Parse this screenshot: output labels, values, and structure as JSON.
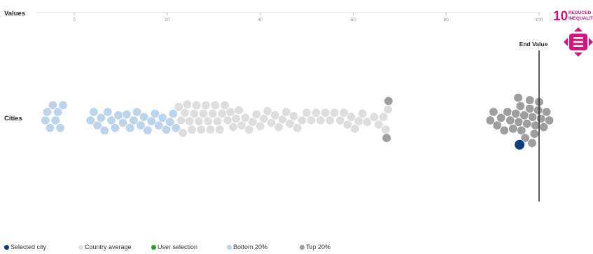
{
  "chart_data": {
    "type": "scatter",
    "subtype": "beeswarm",
    "x_axis_label": "Values",
    "y_category_label": "Cities",
    "xlim": [
      -8,
      103
    ],
    "x_ticks": [
      0,
      20,
      40,
      60,
      80,
      100
    ],
    "end_value": {
      "label": "End Value",
      "value": 100
    },
    "colors": {
      "selected_city": "#0b3d7a",
      "country_average": "#dedede",
      "user_selection": "#2ca02c",
      "bottom_20": "#bcd4ec",
      "top_20": "#9e9e9e"
    },
    "groups": [
      {
        "category": "bottom_20",
        "values": [
          -6.2,
          -5.8,
          -5.2,
          -4.6,
          -4.0,
          -3.5,
          -3.0,
          -2.4,
          3.5,
          4.2,
          5.0,
          5.8,
          6.5,
          7.2,
          8.0,
          8.8,
          9.5,
          10.5,
          11.3,
          12.0,
          12.8,
          13.5,
          14.3,
          15.0,
          15.8,
          16.6,
          17.4,
          18.2,
          19.0,
          19.8,
          20.6,
          21.3,
          21.9
        ]
      },
      {
        "category": "country_average",
        "values": [
          22.5,
          23.0,
          23.4,
          23.8,
          24.3,
          24.8,
          25.3,
          25.8,
          26.3,
          26.8,
          27.3,
          27.8,
          28.3,
          28.8,
          29.3,
          29.8,
          30.3,
          30.8,
          31.3,
          31.8,
          32.4,
          33.0,
          33.6,
          34.2,
          34.8,
          35.4,
          36.0,
          36.8,
          37.6,
          38.4,
          39.2,
          40.0,
          40.8,
          41.6,
          42.4,
          43.2,
          44.0,
          44.8,
          45.6,
          46.4,
          47.2,
          48.0,
          49.0,
          50.0,
          51.0,
          52.0,
          53.0,
          54.0,
          55.0,
          56.0,
          57.2,
          58.0,
          58.8,
          59.6,
          60.4,
          61.2,
          62.0,
          63.0,
          64.5,
          65.5,
          66.5,
          67.0,
          67.5
        ]
      },
      {
        "category": "top_20",
        "values": [
          67.2,
          67.6,
          89.5,
          90.2,
          91.0,
          91.8,
          92.5,
          93.2,
          93.8,
          94.4,
          95.0,
          95.6,
          96.2,
          96.8,
          97.4,
          98.0,
          98.6,
          99.2,
          99.8,
          100.4,
          101.0,
          101.6,
          102.2,
          96.0,
          97.0,
          98.0,
          99.0,
          100.0,
          95.5,
          98.5
        ]
      },
      {
        "category": "selected_city",
        "values": [
          95.8
        ]
      }
    ]
  },
  "badge": {
    "number": "10",
    "text": "REDUCED INEQUALITIES"
  },
  "legend": [
    {
      "label": "Selected city",
      "color": "#0b3d7a"
    },
    {
      "label": "Country average",
      "color": "#dedede"
    },
    {
      "label": "User selection",
      "color": "#2ca02c"
    },
    {
      "label": "Bottom 20%",
      "color": "#bcd4ec"
    },
    {
      "label": "Top 20%",
      "color": "#9e9e9e"
    }
  ]
}
